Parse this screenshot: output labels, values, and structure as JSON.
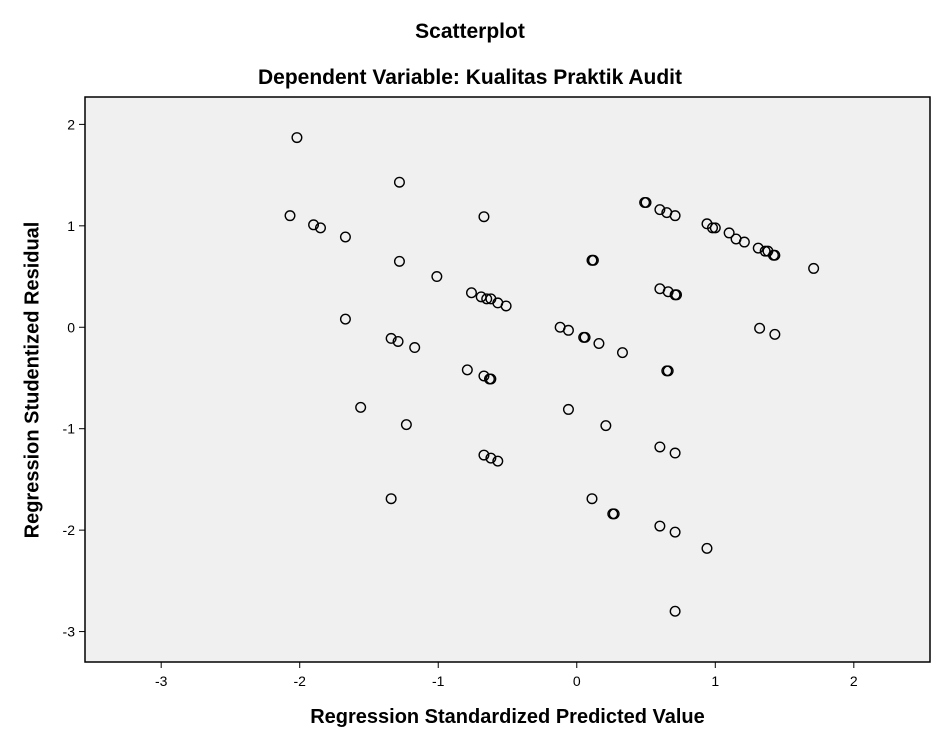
{
  "chart_data": {
    "type": "scatter",
    "title": "Scatterplot",
    "subtitle": "Dependent Variable: Kualitas Praktik Audit",
    "xlabel": "Regression Standardized Predicted Value",
    "ylabel": "Regression Studentized Residual",
    "xlim": [
      -3.55,
      2.55
    ],
    "ylim": [
      -3.3,
      2.27
    ],
    "xticks": [
      -3,
      -2,
      -1,
      0,
      1,
      2
    ],
    "yticks": [
      2,
      1,
      0,
      -1,
      -2,
      -3
    ],
    "xtick_labels": [
      "-3",
      "-2",
      "-1",
      "0",
      "1",
      "2"
    ],
    "ytick_labels": [
      "2",
      "1",
      "0",
      "-1",
      "-2",
      "-3"
    ],
    "grid": false,
    "legend": "none",
    "colors": {
      "plot_background": "#f0f0f0",
      "marker": "#000000"
    },
    "points": [
      {
        "x": -2.02,
        "y": 1.87
      },
      {
        "x": -2.07,
        "y": 1.1
      },
      {
        "x": -1.9,
        "y": 1.01
      },
      {
        "x": -1.85,
        "y": 0.98
      },
      {
        "x": -1.67,
        "y": 0.89
      },
      {
        "x": -1.28,
        "y": 1.43
      },
      {
        "x": -0.67,
        "y": 1.09
      },
      {
        "x": -1.28,
        "y": 0.65
      },
      {
        "x": -1.01,
        "y": 0.5
      },
      {
        "x": -0.76,
        "y": 0.34
      },
      {
        "x": -0.69,
        "y": 0.3
      },
      {
        "x": -0.65,
        "y": 0.28
      },
      {
        "x": -0.62,
        "y": 0.28
      },
      {
        "x": -0.57,
        "y": 0.24
      },
      {
        "x": -0.51,
        "y": 0.21
      },
      {
        "x": -1.67,
        "y": 0.08
      },
      {
        "x": -1.34,
        "y": -0.11
      },
      {
        "x": -1.29,
        "y": -0.14
      },
      {
        "x": -1.17,
        "y": -0.2
      },
      {
        "x": -0.79,
        "y": -0.42
      },
      {
        "x": -0.67,
        "y": -0.48
      },
      {
        "x": -0.63,
        "y": -0.51
      },
      {
        "x": -0.62,
        "y": -0.51
      },
      {
        "x": -1.56,
        "y": -0.79
      },
      {
        "x": -1.23,
        "y": -0.96
      },
      {
        "x": -0.67,
        "y": -1.26
      },
      {
        "x": -0.62,
        "y": -1.29
      },
      {
        "x": -0.57,
        "y": -1.32
      },
      {
        "x": -1.34,
        "y": -1.69
      },
      {
        "x": 0.49,
        "y": 1.23
      },
      {
        "x": 0.5,
        "y": 1.23
      },
      {
        "x": 0.6,
        "y": 1.16
      },
      {
        "x": 0.65,
        "y": 1.13
      },
      {
        "x": 0.71,
        "y": 1.1
      },
      {
        "x": 0.94,
        "y": 1.02
      },
      {
        "x": 0.98,
        "y": 0.98
      },
      {
        "x": 1.0,
        "y": 0.98
      },
      {
        "x": 1.1,
        "y": 0.93
      },
      {
        "x": 1.15,
        "y": 0.87
      },
      {
        "x": 1.21,
        "y": 0.84
      },
      {
        "x": 1.31,
        "y": 0.78
      },
      {
        "x": 1.36,
        "y": 0.75
      },
      {
        "x": 1.38,
        "y": 0.75
      },
      {
        "x": 1.42,
        "y": 0.71
      },
      {
        "x": 1.43,
        "y": 0.71
      },
      {
        "x": 1.71,
        "y": 0.58
      },
      {
        "x": 0.11,
        "y": 0.66
      },
      {
        "x": 0.12,
        "y": 0.66
      },
      {
        "x": 0.6,
        "y": 0.38
      },
      {
        "x": 0.66,
        "y": 0.35
      },
      {
        "x": 0.71,
        "y": 0.32
      },
      {
        "x": 0.72,
        "y": 0.32
      },
      {
        "x": -0.12,
        "y": 0.0
      },
      {
        "x": -0.06,
        "y": -0.03
      },
      {
        "x": 0.05,
        "y": -0.1
      },
      {
        "x": 0.06,
        "y": -0.1
      },
      {
        "x": 0.16,
        "y": -0.16
      },
      {
        "x": 0.33,
        "y": -0.25
      },
      {
        "x": 1.32,
        "y": -0.01
      },
      {
        "x": 1.43,
        "y": -0.07
      },
      {
        "x": 0.65,
        "y": -0.43
      },
      {
        "x": 0.66,
        "y": -0.43
      },
      {
        "x": -0.06,
        "y": -0.81
      },
      {
        "x": 0.21,
        "y": -0.97
      },
      {
        "x": 0.6,
        "y": -1.18
      },
      {
        "x": 0.71,
        "y": -1.24
      },
      {
        "x": 0.11,
        "y": -1.69
      },
      {
        "x": 0.26,
        "y": -1.84
      },
      {
        "x": 0.27,
        "y": -1.84
      },
      {
        "x": 0.6,
        "y": -1.96
      },
      {
        "x": 0.71,
        "y": -2.02
      },
      {
        "x": 0.94,
        "y": -2.18
      },
      {
        "x": 0.71,
        "y": -2.8
      }
    ]
  }
}
